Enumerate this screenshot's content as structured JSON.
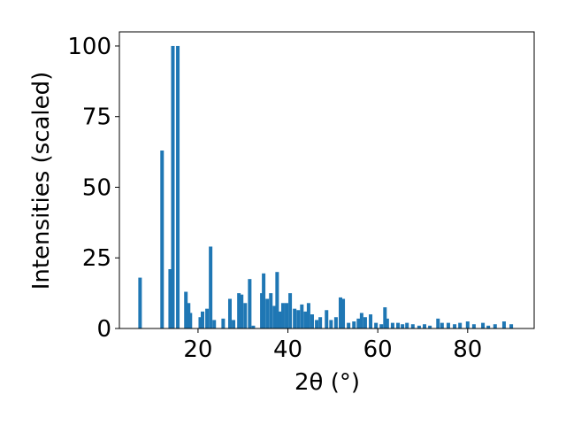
{
  "chart_data": {
    "type": "bar",
    "xlabel": "2θ (°)",
    "ylabel": "Intensities (scaled)",
    "x": [
      7.1,
      12.0,
      13.8,
      14.4,
      15.5,
      17.3,
      17.9,
      18.3,
      20.5,
      21.0,
      22.0,
      22.8,
      23.6,
      25.6,
      27.1,
      27.9,
      29.1,
      29.7,
      30.5,
      31.5,
      32.3,
      34.2,
      34.6,
      35.4,
      36.2,
      37.0,
      37.6,
      38.2,
      38.9,
      39.7,
      40.5,
      41.5,
      42.3,
      43.1,
      43.9,
      44.6,
      45.4,
      46.4,
      47.2,
      48.6,
      49.6,
      50.7,
      51.7,
      52.3,
      53.5,
      54.7,
      55.7,
      56.4,
      57.2,
      58.4,
      59.6,
      60.8,
      61.6,
      62.1,
      63.3,
      64.5,
      65.5,
      66.5,
      67.8,
      69.2,
      70.4,
      71.6,
      73.4,
      74.3,
      75.7,
      77.1,
      78.3,
      80.0,
      81.4,
      83.4,
      84.6,
      86.1,
      88.1,
      89.7
    ],
    "values": [
      18,
      63,
      21,
      100,
      100,
      13,
      9,
      5.5,
      4,
      6,
      7,
      29,
      3,
      3.5,
      10.5,
      3,
      12.5,
      12,
      9,
      17.5,
      1,
      12.5,
      19.5,
      10.5,
      12.5,
      8,
      20,
      6,
      9,
      9,
      12.5,
      7,
      6.5,
      8.5,
      6,
      9,
      5,
      3,
      4,
      6.5,
      3,
      4,
      11,
      10.5,
      2,
      2.5,
      3.5,
      5.5,
      4,
      5,
      2,
      1.5,
      7.5,
      3.5,
      2,
      2,
      1.5,
      2,
      1.5,
      1,
      1.5,
      1,
      3.5,
      2,
      2,
      1.5,
      2,
      2.5,
      1.5,
      2,
      1,
      1.5,
      2.5,
      1.5
    ],
    "color": "#1f77b4",
    "xlim": [
      2.5,
      94.8
    ],
    "xticks": [
      20,
      40,
      60,
      80
    ],
    "ylim": [
      0,
      105
    ],
    "yticks": [
      0,
      25,
      50,
      75,
      100
    ]
  }
}
